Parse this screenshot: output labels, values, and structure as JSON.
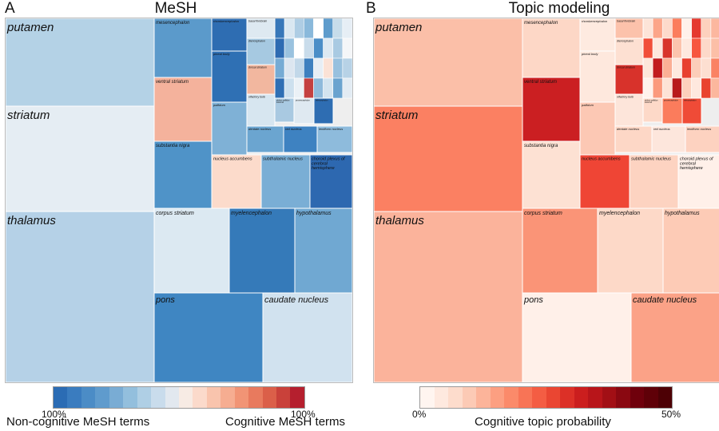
{
  "panels": {
    "a": {
      "letter": "A",
      "title": "MeSH"
    },
    "b": {
      "letter": "B",
      "title": "Topic modeling"
    }
  },
  "colorbar_a": {
    "left_tick": "100%",
    "right_tick": "100%",
    "left_label": "Non-cognitive MeSH terms",
    "right_label": "Cognitive MeSH terms",
    "colors": [
      "#2b6cb4",
      "#3a7cbf",
      "#4b8cc6",
      "#5f9bcd",
      "#79acd4",
      "#93bfdd",
      "#afcfe5",
      "#c9dcec",
      "#e2e8ef",
      "#f7ebe4",
      "#fbdacb",
      "#f9c4ad",
      "#f6ad91",
      "#f19475",
      "#e87a5e",
      "#db5f49",
      "#c9413a",
      "#b51f2e"
    ]
  },
  "colorbar_b": {
    "left_tick": "0%",
    "right_tick": "50%",
    "label": "Cognitive topic probability",
    "colors": [
      "#fff5f0",
      "#fee9df",
      "#fddccc",
      "#fccab5",
      "#fcb49a",
      "#fc9f81",
      "#fb8a6a",
      "#f87456",
      "#f45d43",
      "#ea4632",
      "#dc3027",
      "#cb1e1e",
      "#b8151a",
      "#a20f15",
      "#8a0811",
      "#6f000c",
      "#5f0008",
      "#4d0005"
    ]
  },
  "chart_data": [
    {
      "type": "treemap",
      "title": "MeSH",
      "regions": [
        {
          "name": "putamen",
          "color": "#b4d2e6"
        },
        {
          "name": "striatum",
          "color": "#e5edf3"
        },
        {
          "name": "thalamus",
          "color": "#b5d1e7"
        },
        {
          "name": "mesencephalon",
          "color": "#5b9acb"
        },
        {
          "name": "ventral striatum",
          "color": "#f4b29c"
        },
        {
          "name": "substantia nigra",
          "color": "#4f93c8"
        },
        {
          "name": "rhombencephalon",
          "color": "#2e6db2"
        },
        {
          "name": "pineal body",
          "color": "#2f70b4"
        },
        {
          "name": "pallidum",
          "color": "#7fb1d6"
        },
        {
          "name": "basal forebrain",
          "color": "#dee9f1"
        },
        {
          "name": "diencephalon",
          "color": "#a6c9e1"
        },
        {
          "name": "dorsal striatum",
          "color": "#f2b79f"
        },
        {
          "name": "olfactory bulb",
          "color": "#d7e6f0"
        },
        {
          "name": "globus pallidus external",
          "color": "#a9c9e1"
        },
        {
          "name": "prosencephalon",
          "color": "#dfe9f1"
        },
        {
          "name": "telencephalon",
          "color": "#2e6db2"
        },
        {
          "name": "dentate nucleus",
          "color": "#6ba5d0"
        },
        {
          "name": "red nucleus",
          "color": "#3e82c1"
        },
        {
          "name": "lentiform nucleus",
          "color": "#8ebbdc"
        },
        {
          "name": "nucleus accumbens",
          "color": "#fcdbcb"
        },
        {
          "name": "subthalamic nucleus",
          "color": "#7aaed5"
        },
        {
          "name": "choroid plexus of cerebral hemisphere",
          "color": "#2d68b0"
        },
        {
          "name": "corpus striatum",
          "color": "#dce9f2"
        },
        {
          "name": "myelencephalon",
          "color": "#357ab9"
        },
        {
          "name": "hypothalamus",
          "color": "#70a8d2"
        },
        {
          "name": "pons",
          "color": "#3f86c2"
        },
        {
          "name": "caudate nucleus",
          "color": "#d1e2ef"
        }
      ]
    },
    {
      "type": "treemap",
      "title": "Topic modeling",
      "regions": [
        {
          "name": "putamen",
          "color": "#fbbfa8"
        },
        {
          "name": "striatum",
          "color": "#fb8062"
        },
        {
          "name": "thalamus",
          "color": "#fbb39b"
        },
        {
          "name": "mesencephalon",
          "color": "#fdd7c6"
        },
        {
          "name": "ventral striatum",
          "color": "#cb1f22"
        },
        {
          "name": "substantia nigra",
          "color": "#fde1d3"
        },
        {
          "name": "rhombencephalon",
          "color": "#feeae0"
        },
        {
          "name": "pineal body",
          "color": "#fee8dd"
        },
        {
          "name": "pallidum",
          "color": "#fcc8b4"
        },
        {
          "name": "basal forebrain",
          "color": "#fcc2ab"
        },
        {
          "name": "diencephalon",
          "color": "#fde0d2"
        },
        {
          "name": "dorsal striatum",
          "color": "#d8322b"
        },
        {
          "name": "olfactory bulb",
          "color": "#fde5da"
        },
        {
          "name": "globus pallidus external",
          "color": "#fdd9c8"
        },
        {
          "name": "prosencephalon",
          "color": "#fb7c5c"
        },
        {
          "name": "telencephalon",
          "color": "#ef4b37"
        },
        {
          "name": "dentate nucleus",
          "color": "#fdd7c6"
        },
        {
          "name": "red nucleus",
          "color": "#fde6dc"
        },
        {
          "name": "lentiform nucleus",
          "color": "#fdd2c0"
        },
        {
          "name": "nucleus accumbens",
          "color": "#ef4535"
        },
        {
          "name": "subthalamic nucleus",
          "color": "#fdd3c1"
        },
        {
          "name": "choroid plexus of cerebral hemisphere",
          "color": "#fff0e9"
        },
        {
          "name": "corpus striatum",
          "color": "#fa9477"
        },
        {
          "name": "myelencephalon",
          "color": "#fdd9c8"
        },
        {
          "name": "hypothalamus",
          "color": "#fdcbb6"
        },
        {
          "name": "pons",
          "color": "#fff0e9"
        },
        {
          "name": "caudate nucleus",
          "color": "#fba287"
        }
      ]
    }
  ]
}
